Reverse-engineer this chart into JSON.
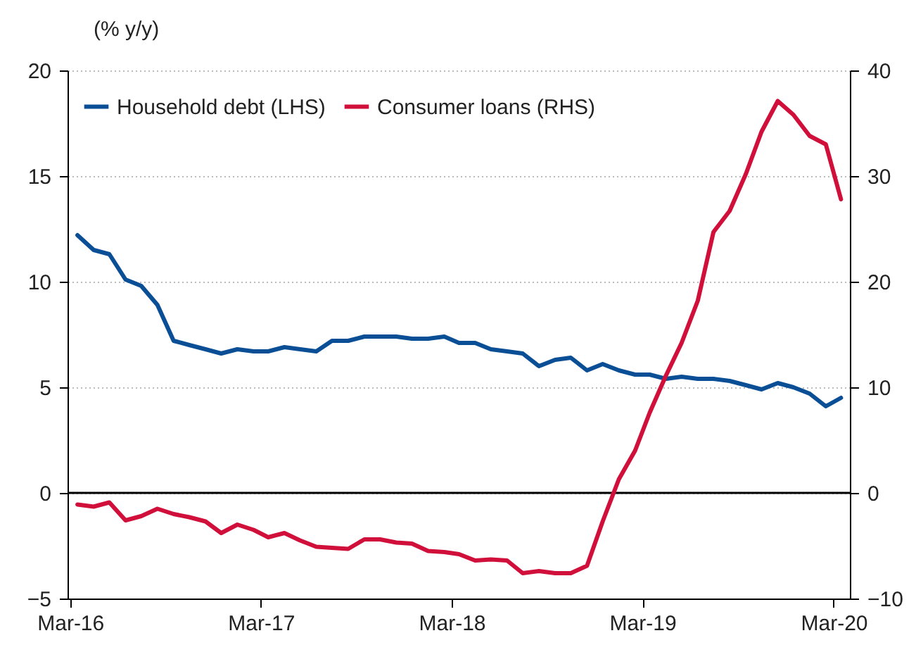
{
  "chart_data": {
    "type": "line",
    "ylabel": "(% y/y)",
    "x": [
      "2016-03-15",
      "2016-04-15",
      "2016-05-15",
      "2016-06-15",
      "2016-07-15",
      "2016-08-15",
      "2016-09-15",
      "2016-10-15",
      "2016-11-15",
      "2016-12-15",
      "2017-01-15",
      "2017-02-15",
      "2017-03-15",
      "2017-04-15",
      "2017-05-15",
      "2017-06-15",
      "2017-07-15",
      "2017-08-15",
      "2017-09-15",
      "2017-10-15",
      "2017-11-15",
      "2017-12-15",
      "2018-01-15",
      "2018-02-15",
      "2018-03-15",
      "2018-04-15",
      "2018-05-15",
      "2018-06-15",
      "2018-07-15",
      "2018-08-15",
      "2018-09-15",
      "2018-10-15",
      "2018-11-15",
      "2018-12-15",
      "2019-01-15",
      "2019-02-15",
      "2019-03-15",
      "2019-04-15",
      "2019-05-15",
      "2019-06-15",
      "2019-07-15",
      "2019-08-15",
      "2019-09-15",
      "2019-10-15",
      "2019-11-15",
      "2019-12-15",
      "2020-01-15",
      "2020-02-15",
      "2020-03-15"
    ],
    "series": [
      {
        "name": "Household debt (LHS)",
        "color": "#0a4f96",
        "values": [
          12.2,
          11.5,
          11.3,
          10.1,
          9.8,
          8.9,
          7.2,
          7.0,
          6.8,
          6.6,
          6.8,
          6.7,
          6.7,
          6.9,
          6.8,
          6.7,
          7.2,
          7.2,
          7.4,
          7.4,
          7.4,
          7.3,
          7.3,
          7.4,
          7.1,
          7.1,
          6.8,
          6.7,
          6.6,
          6.0,
          6.3,
          6.4,
          5.8,
          6.1,
          5.8,
          5.6,
          5.6,
          5.4,
          5.5,
          5.4,
          5.4,
          5.3,
          5.1,
          4.9,
          5.2,
          5.0,
          4.7,
          4.1,
          4.5
        ]
      },
      {
        "name": "Consumer loans (RHS)",
        "color": "#d0103a",
        "axis": "y2",
        "values": [
          -1.1,
          -1.3,
          -0.9,
          -2.6,
          -2.2,
          -1.5,
          -2.0,
          -2.3,
          -2.7,
          -3.8,
          -3.0,
          -3.5,
          -4.2,
          -3.8,
          -4.5,
          -5.1,
          -5.2,
          -5.3,
          -4.4,
          -4.4,
          -4.7,
          -4.8,
          -5.5,
          -5.6,
          -5.8,
          -6.4,
          -6.3,
          -6.4,
          -7.6,
          -7.4,
          -7.6,
          -7.6,
          -6.9,
          -2.7,
          1.3,
          4.0,
          7.6,
          11.1,
          14.2,
          18.2,
          24.7,
          26.7,
          30.2,
          34.2,
          37.1,
          35.8,
          33.8,
          33.0,
          27.8
        ]
      }
    ],
    "xlim": [
      "2016-02-25",
      "2020-04-01"
    ],
    "xticks": [
      {
        "value": "2016-03-01",
        "label": "Mar-16"
      },
      {
        "value": "2017-03-01",
        "label": "Mar-17"
      },
      {
        "value": "2018-03-01",
        "label": "Mar-18"
      },
      {
        "value": "2019-03-01",
        "label": "Mar-19"
      },
      {
        "value": "2020-03-01",
        "label": "Mar-20"
      }
    ],
    "ylim": [
      -5,
      20
    ],
    "yticks": [
      -5,
      0,
      5,
      10,
      15,
      20
    ],
    "y2lim": [
      -10,
      40
    ],
    "y2ticks": [
      -10,
      0,
      10,
      20,
      30,
      40
    ],
    "ref_lines": [
      {
        "axis": "y",
        "value": 0,
        "color": "#000000"
      }
    ],
    "grid": "y",
    "legend": "top left"
  }
}
